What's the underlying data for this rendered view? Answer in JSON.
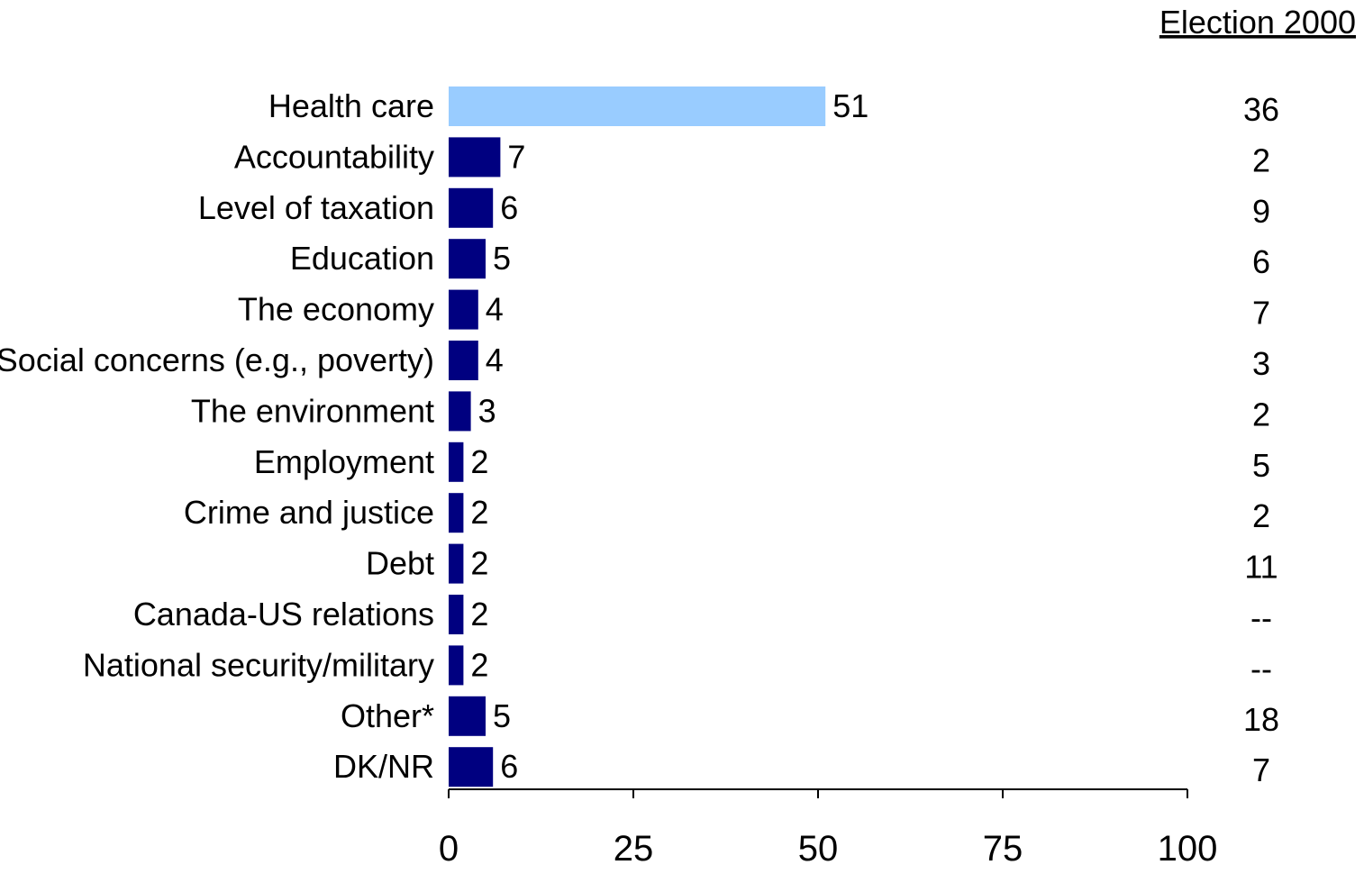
{
  "chart_data": {
    "type": "bar",
    "orientation": "horizontal",
    "categories": [
      "Health care",
      "Accountability",
      "Level of taxation",
      "Education",
      "The economy",
      "Social concerns (e.g., poverty)",
      "The environment",
      "Employment",
      "Crime and justice",
      "Debt",
      "Canada-US relations",
      "National security/military",
      "Other*",
      "DK/NR"
    ],
    "values": [
      51,
      7,
      6,
      5,
      4,
      4,
      3,
      2,
      2,
      2,
      2,
      2,
      5,
      6
    ],
    "highlight_index": 0,
    "comparison_column": {
      "title": "Election 2000",
      "values": [
        "36",
        "2",
        "9",
        "6",
        "7",
        "3",
        "2",
        "5",
        "2",
        "11",
        "--",
        "--",
        "18",
        "7"
      ]
    },
    "xlim": [
      0,
      100
    ],
    "xticks": [
      0,
      25,
      50,
      75,
      100
    ],
    "grid": false,
    "legend": "none"
  },
  "colors": {
    "bar": "#000080",
    "highlight_bar": "#99CCFF",
    "axis": "#000000"
  }
}
